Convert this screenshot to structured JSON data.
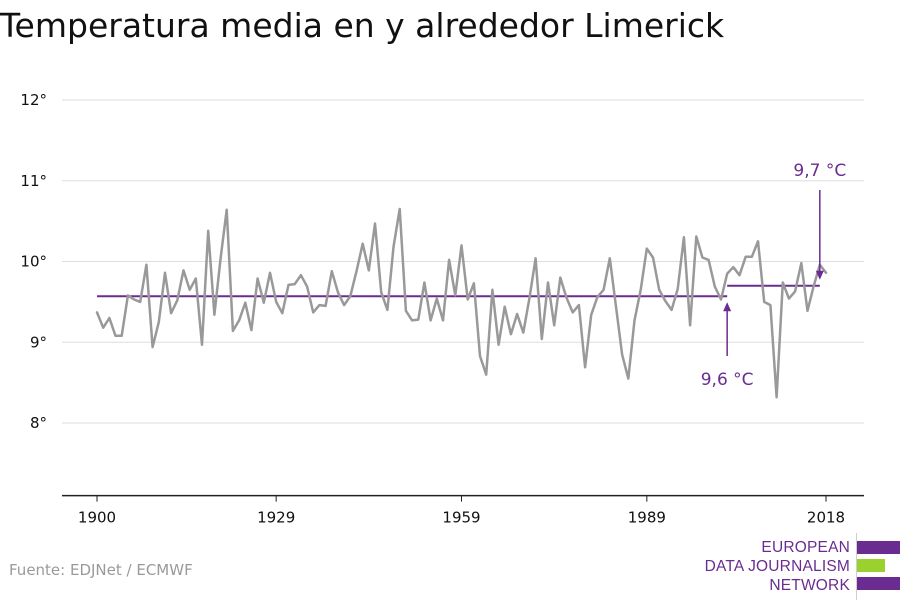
{
  "chart_data": {
    "type": "line",
    "title": "Temperatura media en y alrededor Limerick",
    "xlabel": "",
    "ylabel": "",
    "xlim": [
      1900,
      2018
    ],
    "ylim": [
      7.1,
      12.3
    ],
    "x_ticks": [
      {
        "value": 1900,
        "label": "1900"
      },
      {
        "value": 1929,
        "label": "1929"
      },
      {
        "value": 1959,
        "label": "1959"
      },
      {
        "value": 1989,
        "label": "1989"
      },
      {
        "value": 2018,
        "label": "2018"
      }
    ],
    "y_ticks": [
      {
        "value": 8,
        "label": "8°"
      },
      {
        "value": 9,
        "label": "9°"
      },
      {
        "value": 10,
        "label": "10°"
      },
      {
        "value": 11,
        "label": "11°"
      },
      {
        "value": 12,
        "label": "12°"
      }
    ],
    "grid": true,
    "series": [
      {
        "color": "#999999",
        "x_start": 1900,
        "values": [
          9.37,
          9.18,
          9.3,
          9.08,
          9.08,
          9.58,
          9.53,
          9.5,
          9.96,
          8.94,
          9.25,
          9.86,
          9.36,
          9.52,
          9.89,
          9.65,
          9.79,
          8.97,
          10.38,
          9.34,
          10.04,
          10.64,
          9.14,
          9.27,
          9.49,
          9.15,
          9.79,
          9.49,
          9.86,
          9.5,
          9.36,
          9.71,
          9.72,
          9.83,
          9.69,
          9.37,
          9.46,
          9.45,
          9.88,
          9.62,
          9.46,
          9.57,
          9.88,
          10.22,
          9.89,
          10.47,
          9.62,
          9.4,
          10.18,
          10.65,
          9.39,
          9.27,
          9.28,
          9.74,
          9.27,
          9.54,
          9.27,
          10.02,
          9.58,
          10.2,
          9.53,
          9.73,
          8.83,
          8.6,
          9.65,
          8.97,
          9.44,
          9.1,
          9.35,
          9.12,
          9.55,
          10.04,
          9.04,
          9.74,
          9.21,
          9.8,
          9.55,
          9.37,
          9.46,
          8.69,
          9.34,
          9.56,
          9.65,
          10.04,
          9.45,
          8.85,
          8.55,
          9.27,
          9.65,
          10.16,
          10.05,
          9.65,
          9.51,
          9.4,
          9.66,
          10.3,
          9.21,
          10.31,
          10.05,
          10.02,
          9.69,
          9.53,
          9.85,
          9.93,
          9.83,
          10.06,
          10.06,
          10.25,
          9.5,
          9.46,
          8.32,
          9.74,
          9.54,
          9.63,
          9.98,
          9.39,
          9.69,
          9.96,
          9.86
        ]
      }
    ],
    "reference_lines": [
      {
        "value": 9.57,
        "x_from": 1900,
        "x_to": 2002,
        "color": "#6a2c91"
      },
      {
        "value": 9.7,
        "x_from": 2002,
        "x_to": 2017,
        "color": "#6a2c91"
      }
    ],
    "annotations": [
      {
        "text": "9,6 °C",
        "x": 2002,
        "y": 9.57,
        "position": "below",
        "color": "#6a2c91"
      },
      {
        "text": "9,7 °C",
        "x": 2017,
        "y": 9.7,
        "position": "above",
        "color": "#6a2c91"
      }
    ]
  },
  "footer": {
    "source": "Fuente: EDJNet / ECMWF",
    "logo_lines": [
      "EUROPEAN",
      "DATA JOURNALISM",
      "NETWORK"
    ],
    "logo_colors": [
      "#6a2c91",
      "#9bd12e",
      "#6a2c91"
    ]
  }
}
